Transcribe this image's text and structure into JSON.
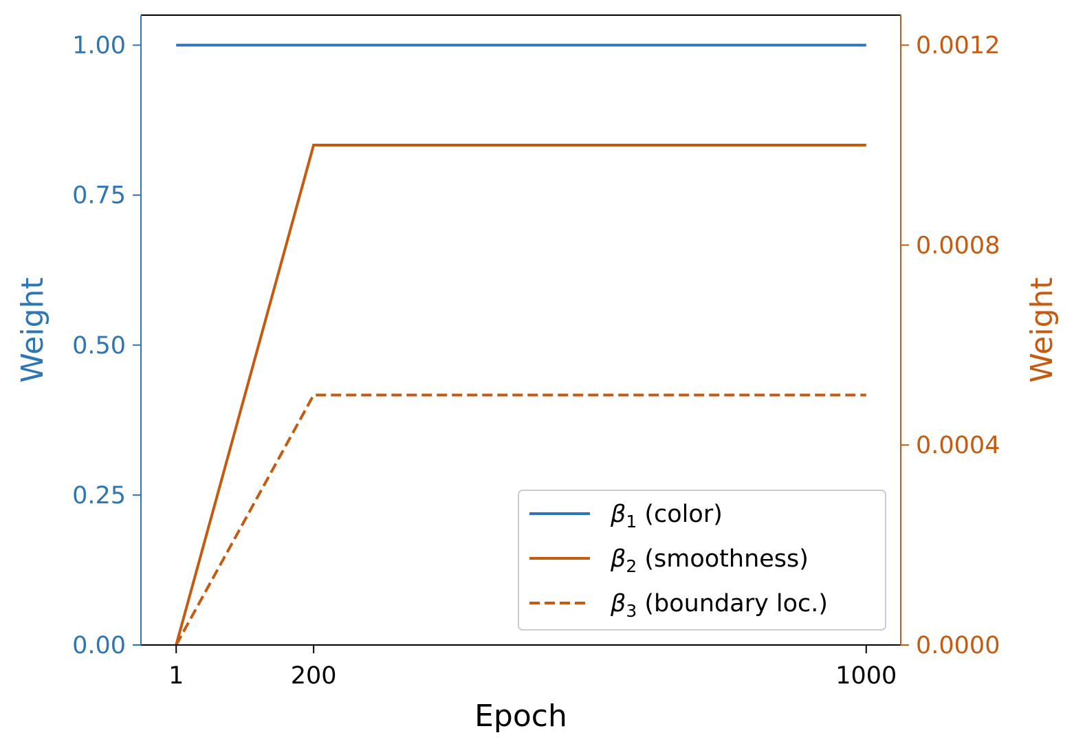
{
  "chart_data": {
    "type": "line",
    "xlabel": "Epoch",
    "x_ticks": [
      "1",
      "200",
      "1000"
    ],
    "x_tick_values": [
      1,
      200,
      1000
    ],
    "xlim": [
      -50,
      1050
    ],
    "left_axis": {
      "ylabel": "Weight",
      "color": "#2E75B6",
      "ylim": [
        0,
        1.05
      ],
      "ticks": [
        {
          "value": 0.0,
          "label": "0.00"
        },
        {
          "value": 0.25,
          "label": "0.25"
        },
        {
          "value": 0.5,
          "label": "0.50"
        },
        {
          "value": 0.75,
          "label": "0.75"
        },
        {
          "value": 1.0,
          "label": "1.00"
        }
      ]
    },
    "right_axis": {
      "ylabel": "Weight",
      "color": "#C55A11",
      "ylim": [
        0,
        0.00126
      ],
      "ticks": [
        {
          "value": 0.0,
          "label": "0.0000"
        },
        {
          "value": 0.0004,
          "label": "0.0004"
        },
        {
          "value": 0.0008,
          "label": "0.0008"
        },
        {
          "value": 0.0012,
          "label": "0.0012"
        }
      ]
    },
    "series": [
      {
        "name": "β1 (color)",
        "sym": "β",
        "sub": "1",
        "rest": " (color)",
        "axis": "left",
        "color": "#2E75B6",
        "dash": "solid",
        "x": [
          1,
          1000
        ],
        "y": [
          1.0,
          1.0
        ]
      },
      {
        "name": "β2 (smoothness)",
        "sym": "β",
        "sub": "2",
        "rest": " (smoothness)",
        "axis": "right",
        "color": "#C55A11",
        "dash": "solid",
        "x": [
          1,
          200,
          1000
        ],
        "y": [
          0.0,
          0.001,
          0.001
        ]
      },
      {
        "name": "β3 (boundary loc.)",
        "sym": "β",
        "sub": "3",
        "rest": " (boundary loc.)",
        "axis": "right",
        "color": "#C55A11",
        "dash": "dashed",
        "x": [
          1,
          200,
          1000
        ],
        "y": [
          0.0,
          0.0005,
          0.0005
        ]
      }
    ],
    "legend_position": "lower-right",
    "grid": false
  }
}
